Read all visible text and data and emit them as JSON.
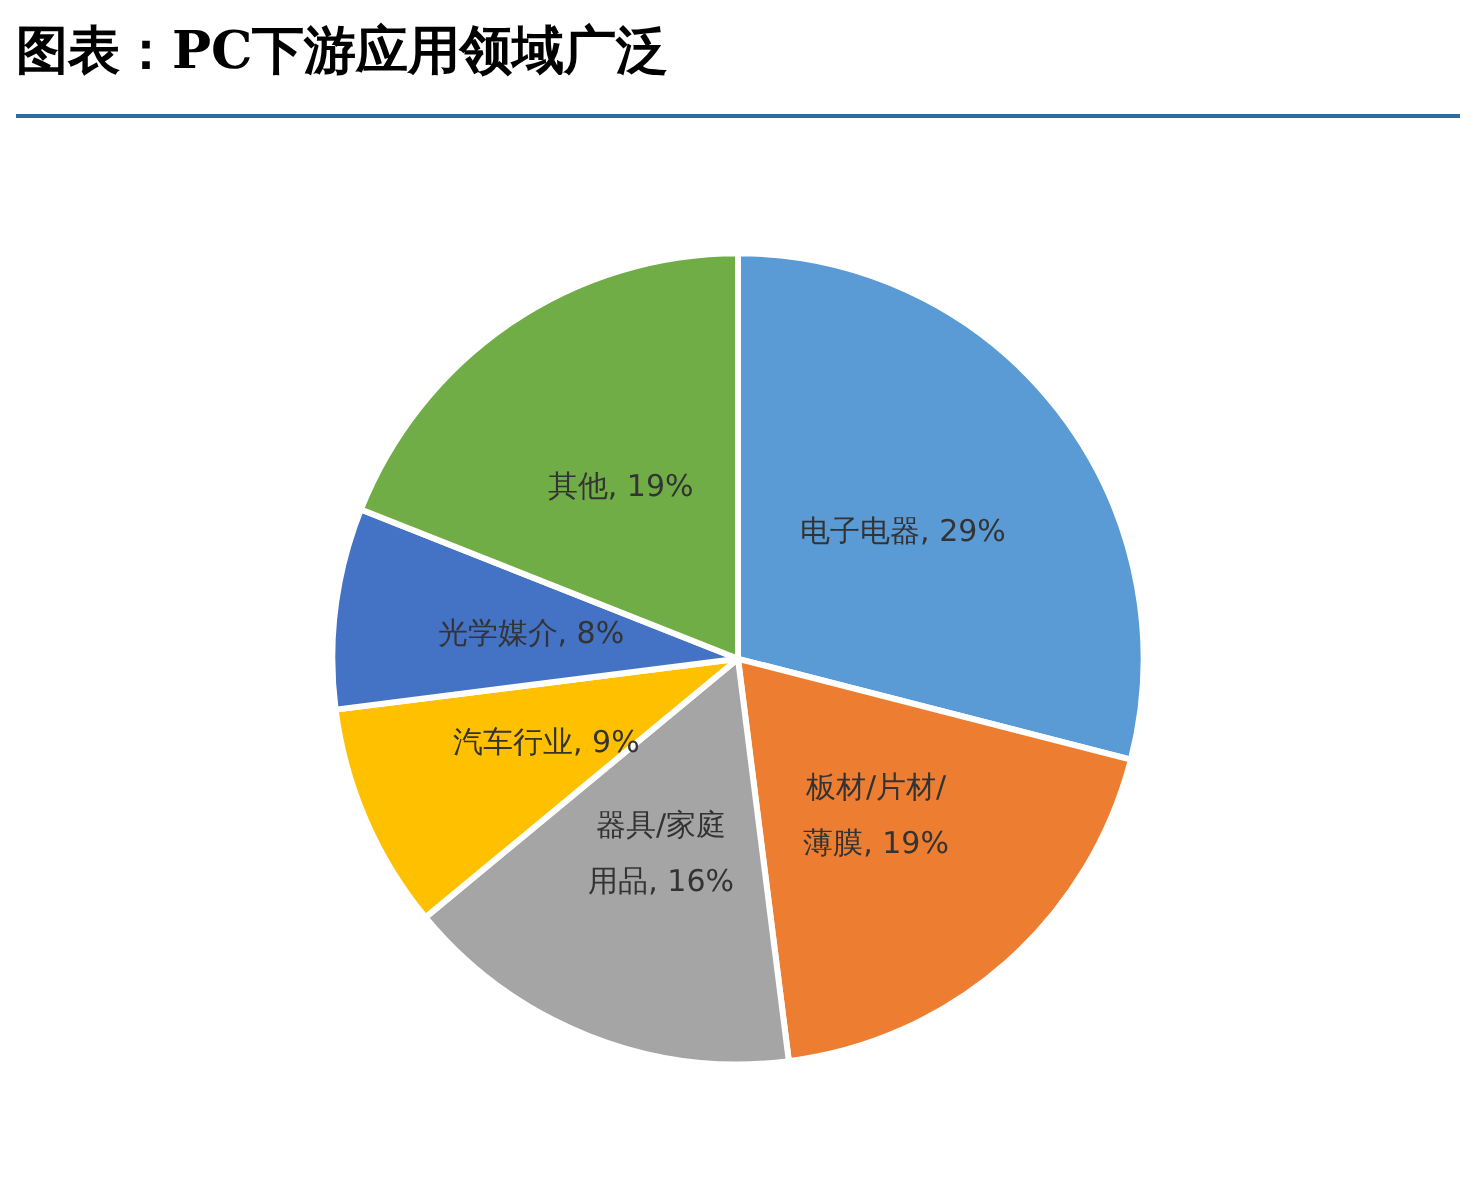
{
  "chart_data": {
    "type": "pie",
    "title": "图表：PC下游应用领域广泛",
    "categories": [
      "电子电器",
      "板材/片材/薄膜",
      "器具/家庭用品",
      "汽车行业",
      "光学媒介",
      "其他"
    ],
    "values": [
      29,
      19,
      16,
      9,
      8,
      19
    ],
    "value_labels": [
      "29%",
      "19%",
      "16%",
      "9%",
      "8%",
      "19%"
    ],
    "colors": [
      "#5b9bd5",
      "#ed7d31",
      "#a5a5a5",
      "#ffc000",
      "#4472c4",
      "#70ad47"
    ],
    "legend": false
  }
}
